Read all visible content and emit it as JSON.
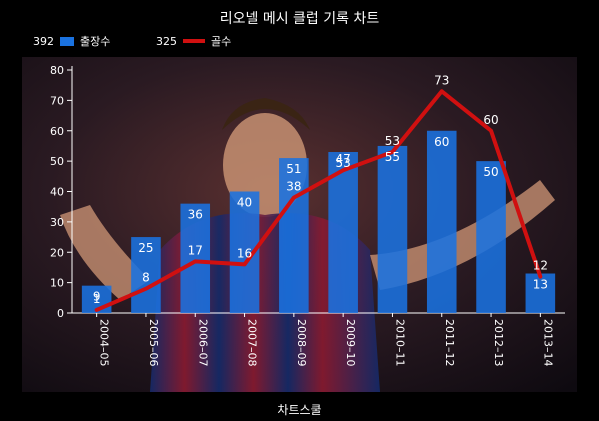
{
  "title": "리오넬 메시 클럽 기록 차트",
  "footer": "차트스쿨",
  "colors": {
    "background": "#000000",
    "bar": "#1a72e0",
    "line": "#d01010",
    "text": "#ffffff",
    "photo_bg": "#3a1e22"
  },
  "legend": {
    "apps_total": "392",
    "goals_total": "325"
  },
  "chart_data": {
    "type": "bar",
    "categories": [
      "2004–05",
      "2005–06",
      "2006–07",
      "2007–08",
      "2008–09",
      "2009–10",
      "2010–11",
      "2011–12",
      "2012–13",
      "2013–14"
    ],
    "ylim": [
      0,
      80
    ],
    "yticks": [
      0,
      10,
      20,
      30,
      40,
      50,
      60,
      70,
      80
    ],
    "series": [
      {
        "name": "출장수",
        "type": "bar",
        "values": [
          9,
          25,
          36,
          40,
          51,
          53,
          55,
          60,
          50,
          13
        ]
      },
      {
        "name": "골수",
        "type": "line",
        "values": [
          1,
          8,
          17,
          16,
          38,
          47,
          53,
          73,
          60,
          12
        ]
      }
    ],
    "background_image": "photo of a footballer celebrating in a red and blue striped jersey"
  }
}
